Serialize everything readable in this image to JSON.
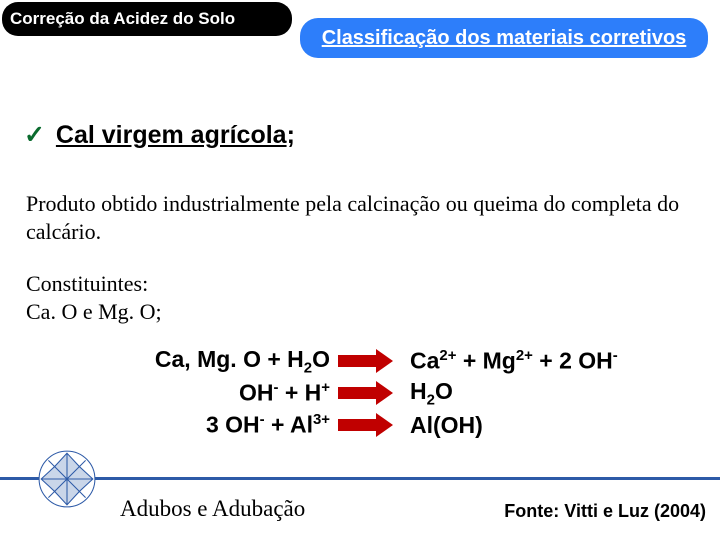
{
  "header": {
    "title": "Correção da Acidez do Solo",
    "subtitle": "Classificação dos materiais corretivos"
  },
  "check_item": {
    "mark": "✓",
    "underlined": "Cal virgem agrícola",
    "tail": ";"
  },
  "description": "Produto obtido industrialmente pela calcinação ou queima do completa do calcário.",
  "constituents": {
    "label": "Constituintes:",
    "value": "Ca. O e Mg. O;"
  },
  "equations": {
    "rows": [
      {
        "left_html": "Ca, Mg. O + H<sub>2</sub>O",
        "right_html": "Ca<sup>2+</sup> + Mg<sup>2+</sup> + 2 OH<sup>-</sup>"
      },
      {
        "left_html": "OH<sup>-</sup> + H<sup>+</sup>",
        "right_html": "H<sub>2</sub>O"
      },
      {
        "left_html": "3 OH<sup>-</sup> + Al<sup>3+</sup>",
        "right_html": "Al(OH)"
      }
    ],
    "arrow_color": "#c00000"
  },
  "footer": {
    "section": "Adubos e Adubação",
    "source": "Fonte: Vitti e Luz (2004)",
    "rule_color": "#2d5aa7"
  },
  "colors": {
    "title_bg": "#000000",
    "subtitle_bg": "#2d7efa",
    "check_mark": "#0a6b2e"
  }
}
